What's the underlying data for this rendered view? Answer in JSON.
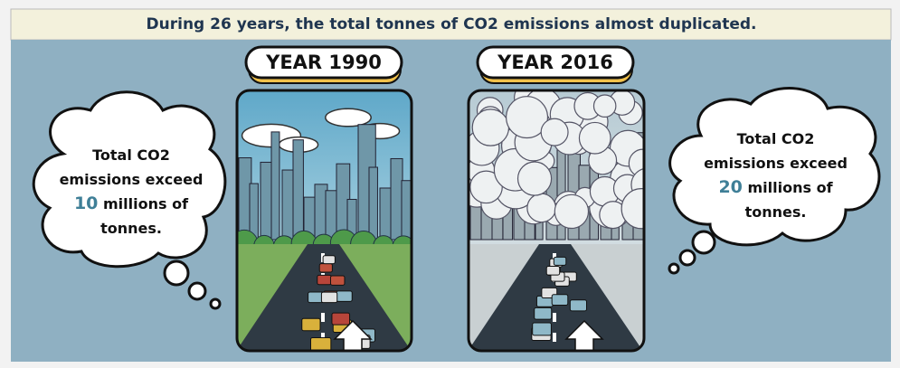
{
  "header": {
    "title": "During 26 years, the total tonnes of CO2 emissions almost duplicated."
  },
  "panels": [
    {
      "label": "YEAR 1990",
      "bubble": {
        "lead": "Total CO2 emissions exceed",
        "amount": 10,
        "tail": "millions of tonnes."
      }
    },
    {
      "label": "YEAR 2016",
      "bubble": {
        "lead": "Total CO2 emissions exceed",
        "amount": 20,
        "tail": "millions of tonnes."
      }
    }
  ]
}
